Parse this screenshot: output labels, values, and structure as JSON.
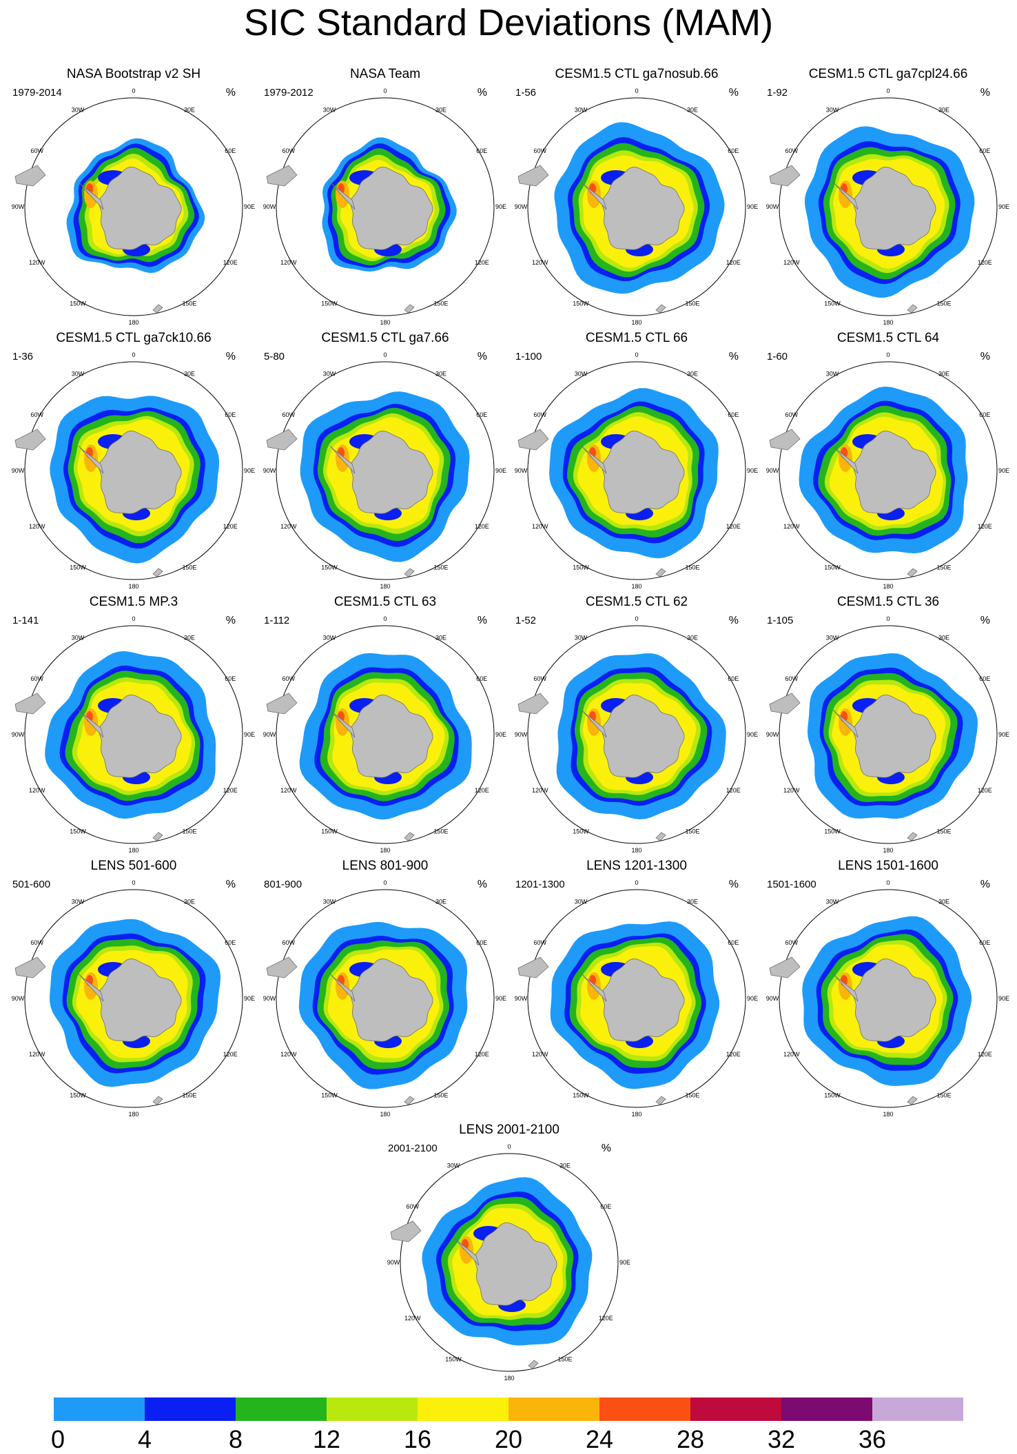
{
  "figure": {
    "title": "SIC Standard Deviations (MAM)",
    "unit": "%",
    "longitude_labels": [
      "0",
      "30E",
      "60E",
      "90E",
      "120E",
      "150E",
      "180",
      "150W",
      "120W",
      "90W",
      "60W",
      "30W"
    ]
  },
  "panels": [
    {
      "title": "NASA Bootstrap v2 SH",
      "period": "1979-2014"
    },
    {
      "title": "NASA Team",
      "period": "1979-2012"
    },
    {
      "title": "CESM1.5 CTL ga7nosub.66",
      "period": "1-56"
    },
    {
      "title": "CESM1.5 CTL ga7cpl24.66",
      "period": "1-92"
    },
    {
      "title": "CESM1.5 CTL ga7ck10.66",
      "period": "1-36"
    },
    {
      "title": "CESM1.5 CTL ga7.66",
      "period": "5-80"
    },
    {
      "title": "CESM1.5 CTL 66",
      "period": "1-100"
    },
    {
      "title": "CESM1.5 CTL 64",
      "period": "1-60"
    },
    {
      "title": "CESM1.5 MP.3",
      "period": "1-141"
    },
    {
      "title": "CESM1.5 CTL 63",
      "period": "1-112"
    },
    {
      "title": "CESM1.5 CTL 62",
      "period": "1-52"
    },
    {
      "title": "CESM1.5 CTL 36",
      "period": "1-105"
    },
    {
      "title": "LENS 501-600",
      "period": "501-600"
    },
    {
      "title": "LENS 801-900",
      "period": "801-900"
    },
    {
      "title": "LENS 1201-1300",
      "period": "1201-1300"
    },
    {
      "title": "LENS 1501-1600",
      "period": "1501-1600"
    },
    {
      "title": "LENS 2001-2100",
      "period": "2001-2100"
    }
  ],
  "colorbar": {
    "ticks": [
      "0",
      "4",
      "8",
      "12",
      "16",
      "20",
      "24",
      "28",
      "32",
      "36"
    ],
    "colors": [
      "#1e9bf8",
      "#0a1ff2",
      "#24b41e",
      "#b8e80e",
      "#fbf00a",
      "#fbb40a",
      "#fb5014",
      "#be0a3c",
      "#7d0a6e",
      "#c8a8d8"
    ]
  },
  "colors": {
    "land": "#bebebe",
    "ice_free": "#ffffff",
    "pack_edge": "#0a1ff2"
  }
}
